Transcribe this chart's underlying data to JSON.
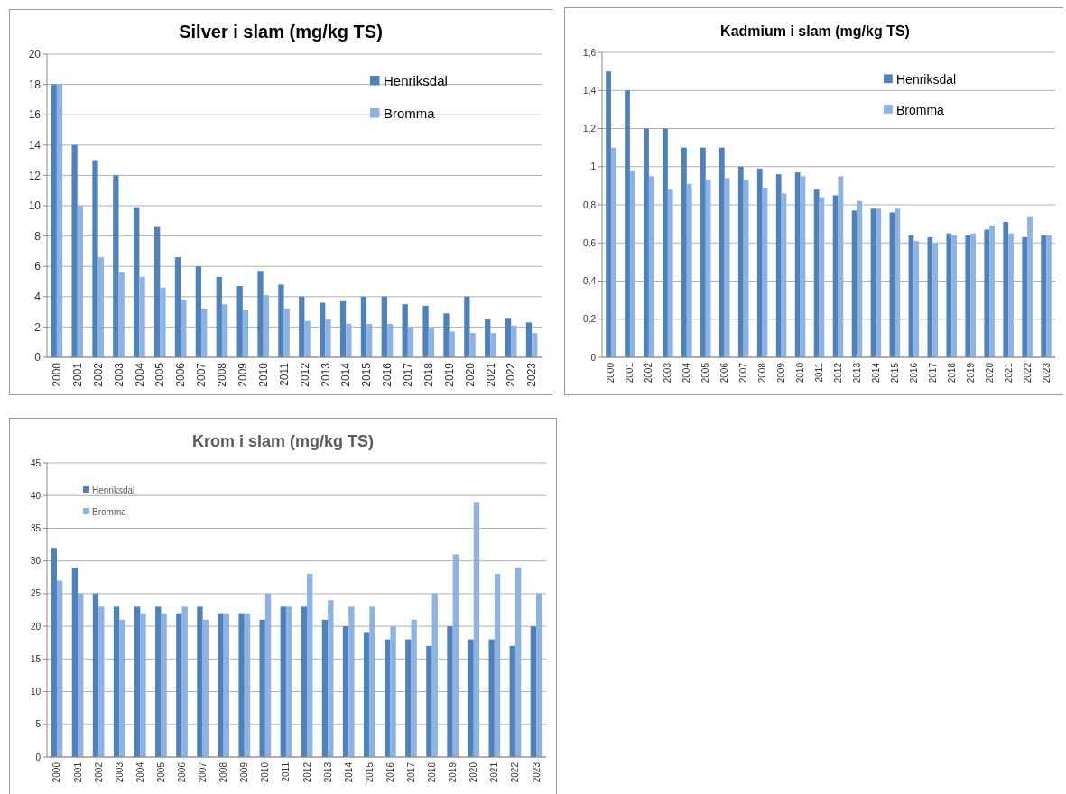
{
  "chart_data": [
    {
      "type": "bar",
      "title": "Silver i slam (mg/kg TS)",
      "categories": [
        "2000",
        "2001",
        "2002",
        "2003",
        "2004",
        "2005",
        "2006",
        "2007",
        "2008",
        "2009",
        "2010",
        "2011",
        "2012",
        "2013",
        "2014",
        "2015",
        "2016",
        "2017",
        "2018",
        "2019",
        "2020",
        "2021",
        "2022",
        "2023"
      ],
      "series": [
        {
          "name": "Henriksdal",
          "color": "#4f81bd",
          "values": [
            18,
            14,
            13,
            12,
            9.9,
            8.6,
            6.6,
            6,
            5.3,
            4.7,
            5.7,
            4.8,
            4,
            3.6,
            3.7,
            4,
            4,
            3.5,
            3.4,
            2.9,
            4,
            2.5,
            2.6,
            2.3
          ]
        },
        {
          "name": "Bromma",
          "color": "#8db3e2",
          "values": [
            18,
            10,
            6.6,
            5.6,
            5.3,
            4.6,
            3.8,
            3.2,
            3.5,
            3.1,
            4.1,
            3.2,
            2.4,
            2.5,
            2.2,
            2.2,
            2.2,
            2,
            1.9,
            1.7,
            1.6,
            1.6,
            2.1,
            1.6
          ]
        }
      ],
      "ylim": [
        0,
        20
      ],
      "yticks": [
        0,
        2,
        4,
        6,
        8,
        10,
        12,
        14,
        16,
        18,
        20
      ],
      "grid": "y",
      "legend": "top right"
    },
    {
      "type": "bar",
      "title": "Kadmium i slam (mg/kg TS)",
      "categories": [
        "2000",
        "2001",
        "2002",
        "2003",
        "2004",
        "2005",
        "2006",
        "2007",
        "2008",
        "2009",
        "2010",
        "2011",
        "2012",
        "2013",
        "2014",
        "2015",
        "2016",
        "2017",
        "2018",
        "2019",
        "2020",
        "2021",
        "2022",
        "2023"
      ],
      "series": [
        {
          "name": "Henriksdal",
          "color": "#4f81bd",
          "values": [
            1.5,
            1.4,
            1.2,
            1.2,
            1.1,
            1.1,
            1.1,
            1,
            0.99,
            0.96,
            0.97,
            0.88,
            0.85,
            0.77,
            0.78,
            0.76,
            0.64,
            0.63,
            0.65,
            0.64,
            0.67,
            0.71,
            0.63,
            0.64
          ]
        },
        {
          "name": "Bromma",
          "color": "#8db3e2",
          "values": [
            1.1,
            0.98,
            0.95,
            0.88,
            0.91,
            0.93,
            0.94,
            0.93,
            0.89,
            0.86,
            0.95,
            0.84,
            0.95,
            0.82,
            0.78,
            0.78,
            0.61,
            0.6,
            0.64,
            0.65,
            0.69,
            0.65,
            0.74,
            0.64
          ]
        }
      ],
      "ylim": [
        0,
        1.6
      ],
      "yticks": [
        0,
        {
          "value": 0.2,
          "label": "0,2"
        },
        {
          "value": 0.4,
          "label": "0,4"
        },
        {
          "value": 0.6,
          "label": "0,6"
        },
        {
          "value": 0.8,
          "label": "0,8"
        },
        1,
        {
          "value": 1.2,
          "label": "1,2"
        },
        {
          "value": 1.4,
          "label": "1,4"
        },
        {
          "value": 1.6,
          "label": "1,6"
        }
      ],
      "grid": "y",
      "legend": "top right"
    },
    {
      "type": "bar",
      "title": "Krom i slam (mg/kg TS)",
      "categories": [
        "2000",
        "2001",
        "2002",
        "2003",
        "2004",
        "2005",
        "2006",
        "2007",
        "2008",
        "2009",
        "2010",
        "2011",
        "2012",
        "2013",
        "2014",
        "2015",
        "2016",
        "2017",
        "2018",
        "2019",
        "2020",
        "2021",
        "2022",
        "2023"
      ],
      "series": [
        {
          "name": "Henriksdal",
          "color": "#4f81bd",
          "values": [
            32,
            29,
            25,
            23,
            23,
            23,
            22,
            23,
            22,
            22,
            21,
            23,
            23,
            21,
            20,
            19,
            18,
            18,
            17,
            20,
            18,
            18,
            17,
            20
          ]
        },
        {
          "name": "Bromma",
          "color": "#8db3e2",
          "values": [
            27,
            25,
            23,
            21,
            22,
            22,
            23,
            21,
            22,
            22,
            25,
            23,
            28,
            24,
            23,
            23,
            20,
            21,
            25,
            31,
            39,
            28,
            29,
            25
          ]
        }
      ],
      "ylim": [
        0,
        45
      ],
      "yticks": [
        0,
        5,
        10,
        15,
        20,
        25,
        30,
        35,
        40,
        45
      ],
      "grid": "y",
      "legend": "top left"
    }
  ]
}
